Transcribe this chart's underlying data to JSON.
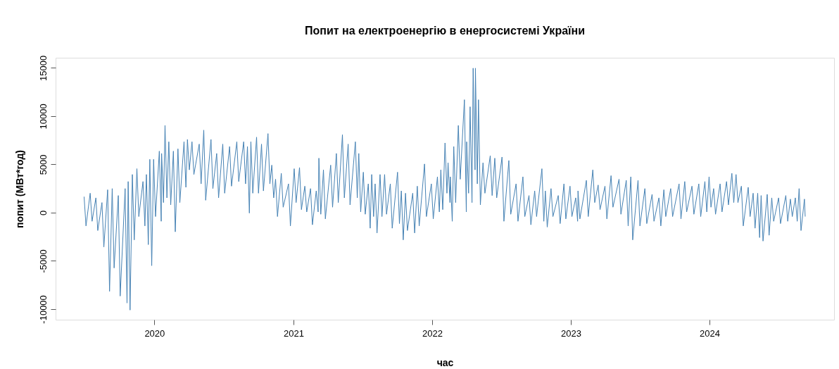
{
  "chart_data": {
    "type": "line",
    "title": "Попит на електроенергію в енергосистемі України",
    "xlabel": "час",
    "ylabel": "попит (МВт*год)",
    "xlim": [
      "2019-04-16",
      "2024-11-24"
    ],
    "xticks": [
      "2020",
      "2021",
      "2022",
      "2023",
      "2024"
    ],
    "ylim": [
      -11100,
      16050
    ],
    "yticks": [
      -10000,
      -5000,
      0,
      5000,
      10000,
      15000
    ],
    "x": [
      "2019-06-30",
      "2019-07-05",
      "2019-07-16",
      "2019-07-21",
      "2019-07-31",
      "2019-08-05",
      "2019-08-16",
      "2019-08-21",
      "2019-08-31",
      "2019-09-05",
      "2019-09-12",
      "2019-09-17",
      "2019-09-28",
      "2019-10-03",
      "2019-10-16",
      "2019-10-21",
      "2019-10-24",
      "2019-10-29",
      "2019-11-04",
      "2019-11-09",
      "2019-11-16",
      "2019-11-21",
      "2019-12-02",
      "2019-12-07",
      "2019-12-11",
      "2019-12-16",
      "2019-12-20",
      "2019-12-25",
      "2019-12-30",
      "2020-01-04",
      "2020-01-14",
      "2020-01-19",
      "2020-01-20",
      "2020-01-25",
      "2020-01-29",
      "2020-02-03",
      "2020-02-08",
      "2020-02-13",
      "2020-02-20",
      "2020-02-25",
      "2020-03-03",
      "2020-03-08",
      "2020-03-19",
      "2020-03-24",
      "2020-03-28",
      "2020-04-02",
      "2020-04-09",
      "2020-04-14",
      "2020-04-28",
      "2020-05-03",
      "2020-05-10",
      "2020-05-15",
      "2020-05-29",
      "2020-06-03",
      "2020-06-13",
      "2020-06-18",
      "2020-06-29",
      "2020-07-04",
      "2020-07-17",
      "2020-07-22",
      "2020-08-05",
      "2020-08-10",
      "2020-08-23",
      "2020-08-28",
      "2020-09-02",
      "2020-09-07",
      "2020-09-11",
      "2020-09-16",
      "2020-09-26",
      "2020-10-01",
      "2020-10-09",
      "2020-10-14",
      "2020-10-26",
      "2020-10-31",
      "2020-11-05",
      "2020-11-10",
      "2020-11-15",
      "2020-11-20",
      "2020-11-30",
      "2020-12-05",
      "2020-12-19",
      "2020-12-24",
      "2021-01-03",
      "2021-01-08",
      "2021-01-17",
      "2021-01-22",
      "2021-01-31",
      "2021-02-05",
      "2021-02-15",
      "2021-02-20",
      "2021-03-02",
      "2021-03-07",
      "2021-03-09",
      "2021-03-14",
      "2021-03-21",
      "2021-03-26",
      "2021-04-09",
      "2021-04-14",
      "2021-04-24",
      "2021-04-29",
      "2021-05-10",
      "2021-05-15",
      "2021-05-25",
      "2021-05-30",
      "2021-06-13",
      "2021-06-18",
      "2021-06-22",
      "2021-06-27",
      "2021-07-04",
      "2021-07-09",
      "2021-07-17",
      "2021-07-22",
      "2021-07-26",
      "2021-07-31",
      "2021-08-04",
      "2021-08-09",
      "2021-08-17",
      "2021-08-22",
      "2021-08-29",
      "2021-09-03",
      "2021-09-13",
      "2021-09-18",
      "2021-10-02",
      "2021-10-07",
      "2021-10-12",
      "2021-10-17",
      "2021-10-23",
      "2021-10-28",
      "2021-11-11",
      "2021-11-16",
      "2021-11-23",
      "2021-11-28",
      "2021-12-12",
      "2021-12-17",
      "2021-12-30",
      "2022-01-04",
      "2022-01-15",
      "2022-01-20",
      "2022-01-24",
      "2022-01-29",
      "2022-02-04",
      "2022-02-09",
      "2022-02-12",
      "2022-02-17",
      "2022-02-18",
      "2022-02-23",
      "2022-02-27",
      "2022-03-04",
      "2022-03-11",
      "2022-03-16",
      "2022-03-27",
      "2022-04-01",
      "2022-04-02",
      "2022-04-07",
      "2022-04-11",
      "2022-04-16",
      "2022-04-19",
      "2022-04-24",
      "2022-04-25",
      "2022-04-30",
      "2022-05-03",
      "2022-05-08",
      "2022-05-15",
      "2022-05-20",
      "2022-06-03",
      "2022-06-08",
      "2022-06-15",
      "2022-06-20",
      "2022-07-04",
      "2022-07-09",
      "2022-07-22",
      "2022-07-27",
      "2022-08-10",
      "2022-08-15",
      "2022-08-28",
      "2022-09-02",
      "2022-09-13",
      "2022-09-18",
      "2022-09-28",
      "2022-10-03",
      "2022-10-17",
      "2022-10-22",
      "2022-10-26",
      "2022-10-31",
      "2022-11-10",
      "2022-11-15",
      "2022-11-29",
      "2022-12-04",
      "2022-12-14",
      "2022-12-19",
      "2022-12-30",
      "2023-01-04",
      "2023-01-14",
      "2023-01-19",
      "2023-01-20",
      "2023-01-25",
      "2023-02-11",
      "2023-02-16",
      "2023-02-28",
      "2023-03-05",
      "2023-03-14",
      "2023-03-19",
      "2023-04-01",
      "2023-04-06",
      "2023-04-17",
      "2023-04-22",
      "2023-05-08",
      "2023-05-13",
      "2023-05-27",
      "2023-06-01",
      "2023-06-08",
      "2023-06-13",
      "2023-06-27",
      "2023-07-02",
      "2023-07-15",
      "2023-07-20",
      "2023-08-03",
      "2023-08-08",
      "2023-08-21",
      "2023-08-26",
      "2023-09-03",
      "2023-09-08",
      "2023-09-21",
      "2023-09-26",
      "2023-10-13",
      "2023-10-18",
      "2023-10-28",
      "2023-11-02",
      "2023-11-16",
      "2023-11-21",
      "2023-12-04",
      "2023-12-09",
      "2023-12-20",
      "2023-12-25",
      "2023-12-31",
      "2024-01-05",
      "2024-01-12",
      "2024-01-17",
      "2024-01-29",
      "2024-02-03",
      "2024-02-15",
      "2024-02-20",
      "2024-02-29",
      "2024-03-05",
      "2024-03-11",
      "2024-03-16",
      "2024-03-25",
      "2024-03-30",
      "2024-04-12",
      "2024-04-17",
      "2024-04-25",
      "2024-04-30",
      "2024-05-07",
      "2024-05-12",
      "2024-05-16",
      "2024-05-21",
      "2024-06-01",
      "2024-06-06",
      "2024-06-13",
      "2024-06-18",
      "2024-07-01",
      "2024-07-06",
      "2024-07-20",
      "2024-07-25",
      "2024-08-01",
      "2024-08-06",
      "2024-08-14",
      "2024-08-19",
      "2024-08-24",
      "2024-08-29",
      "2024-09-07",
      "2024-09-09"
    ],
    "series": [
      {
        "color": "#4682b4",
        "values": [
          1650,
          -1380,
          2010,
          -900,
          1530,
          -1860,
          1040,
          -3560,
          2370,
          -8160,
          2490,
          -5740,
          1770,
          -8650,
          2490,
          -9370,
          3220,
          -10100,
          3950,
          -2830,
          4550,
          -410,
          3220,
          -1380,
          3950,
          -3320,
          5520,
          -5500,
          5520,
          -410,
          6370,
          -900,
          6130,
          1040,
          9030,
          1530,
          7340,
          800,
          6370,
          -1990,
          6610,
          1040,
          7340,
          2620,
          7580,
          4430,
          7340,
          3950,
          7100,
          2980,
          8550,
          1280,
          7580,
          2490,
          6130,
          1530,
          7100,
          2010,
          6850,
          2740,
          7340,
          3220,
          7340,
          2980,
          6850,
          -50,
          7340,
          2010,
          7820,
          2010,
          7100,
          2250,
          8190,
          2980,
          4920,
          1530,
          3460,
          -410,
          4070,
          560,
          2980,
          -1380,
          4550,
          1040,
          4670,
          310,
          2740,
          70,
          2490,
          -1260,
          2250,
          70,
          5640,
          -170,
          4430,
          -650,
          4920,
          560,
          6130,
          1040,
          8070,
          1530,
          7100,
          800,
          7340,
          1530,
          6130,
          70,
          4190,
          -170,
          2980,
          -1620,
          3950,
          -410,
          2980,
          -2110,
          3950,
          -410,
          3950,
          -170,
          2980,
          -1620,
          4190,
          -1140,
          2250,
          -2830,
          2010,
          -1860,
          2010,
          -2110,
          2740,
          -1380,
          5040,
          -410,
          2980,
          -650,
          3710,
          70,
          4430,
          310,
          7220,
          2010,
          5160,
          1040,
          3710,
          -900,
          6850,
          1040,
          9030,
          3460,
          11700,
          70,
          7340,
          2010,
          10970,
          1040,
          14970,
          4430,
          14970,
          2980,
          11700,
          800,
          5160,
          2010,
          5890,
          1770,
          5640,
          1530,
          5760,
          -900,
          5400,
          -170,
          2980,
          -900,
          3710,
          -410,
          1770,
          -1260,
          2250,
          -410,
          4550,
          -900,
          2250,
          -1500,
          2490,
          -410,
          1770,
          -1140,
          2980,
          -650,
          2740,
          -410,
          1530,
          -900,
          2250,
          -650,
          3340,
          -410,
          4430,
          1040,
          2860,
          310,
          2740,
          -650,
          3830,
          560,
          3460,
          -170,
          3340,
          -1380,
          3710,
          -2830,
          3340,
          -1380,
          2490,
          -1140,
          1890,
          -900,
          1530,
          -1380,
          2370,
          -410,
          2490,
          -410,
          2980,
          -650,
          3220,
          70,
          2740,
          -170,
          2980,
          -410,
          3220,
          70,
          3710,
          560,
          2490,
          -170,
          2980,
          70,
          3220,
          800,
          4070,
          1040,
          3950,
          1040,
          2740,
          -1380,
          2620,
          -410,
          2010,
          -1620,
          2010,
          -2590,
          1770,
          -2950,
          1890,
          -2350,
          1530,
          -900,
          1530,
          -1140,
          1770,
          -900,
          1400,
          -410,
          1530,
          -900,
          2490,
          -1860,
          1400,
          -410
        ]
      }
    ]
  }
}
